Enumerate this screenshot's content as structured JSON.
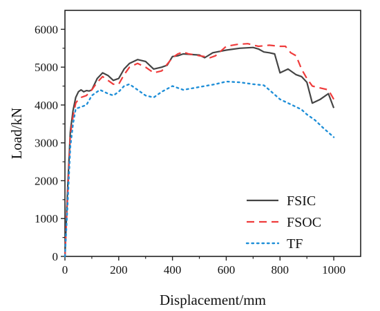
{
  "chart_data": {
    "type": "line",
    "title": "",
    "xlabel": "Displacement/mm",
    "ylabel": "Load/kN",
    "xlim": [
      0,
      1100
    ],
    "ylim": [
      0,
      6500
    ],
    "xticks": [
      0,
      200,
      400,
      600,
      800,
      1000
    ],
    "yticks": [
      0,
      1000,
      2000,
      3000,
      4000,
      5000,
      6000
    ],
    "grid": false,
    "legend_position": "bottom-right",
    "series": [
      {
        "name": "FSIC",
        "color": "#444444",
        "dash": "solid",
        "x": [
          0,
          10,
          20,
          30,
          40,
          50,
          60,
          70,
          80,
          90,
          100,
          120,
          140,
          160,
          180,
          200,
          220,
          240,
          270,
          300,
          330,
          360,
          380,
          400,
          420,
          440,
          460,
          480,
          500,
          520,
          550,
          600,
          650,
          700,
          720,
          740,
          760,
          780,
          800,
          830,
          860,
          880,
          900,
          920,
          950,
          980,
          1000
        ],
        "y": [
          0,
          1800,
          3300,
          3850,
          4200,
          4350,
          4400,
          4350,
          4380,
          4370,
          4400,
          4700,
          4850,
          4780,
          4650,
          4700,
          4950,
          5100,
          5200,
          5150,
          4950,
          5000,
          5050,
          5280,
          5300,
          5350,
          5340,
          5330,
          5320,
          5250,
          5380,
          5450,
          5500,
          5520,
          5480,
          5400,
          5380,
          5350,
          4850,
          4950,
          4800,
          4750,
          4600,
          4050,
          4150,
          4300,
          3920
        ]
      },
      {
        "name": "FSOC",
        "color": "#ef3b3b",
        "dash": "dashed",
        "x": [
          0,
          10,
          20,
          30,
          40,
          50,
          60,
          80,
          100,
          120,
          140,
          160,
          180,
          200,
          220,
          240,
          270,
          300,
          330,
          360,
          400,
          420,
          440,
          460,
          480,
          500,
          520,
          540,
          560,
          600,
          640,
          680,
          720,
          760,
          800,
          820,
          840,
          860,
          880,
          900,
          920,
          950,
          980,
          1000
        ],
        "y": [
          0,
          1600,
          3200,
          3700,
          4050,
          4150,
          4200,
          4250,
          4400,
          4600,
          4750,
          4650,
          4550,
          4550,
          4800,
          5000,
          5100,
          5000,
          4850,
          4900,
          5250,
          5350,
          5400,
          5350,
          5330,
          5300,
          5280,
          5250,
          5300,
          5550,
          5600,
          5620,
          5550,
          5580,
          5550,
          5550,
          5380,
          5300,
          4950,
          4700,
          4500,
          4450,
          4400,
          4150
        ]
      },
      {
        "name": "TF",
        "color": "#1f8fd8",
        "dash": "dotted",
        "x": [
          0,
          10,
          20,
          30,
          40,
          60,
          80,
          100,
          130,
          160,
          180,
          200,
          220,
          240,
          270,
          300,
          330,
          360,
          400,
          440,
          480,
          520,
          560,
          600,
          650,
          700,
          740,
          760,
          800,
          830,
          860,
          880,
          900,
          930,
          960,
          1000
        ],
        "y": [
          0,
          1400,
          2900,
          3500,
          3900,
          3950,
          4000,
          4250,
          4400,
          4300,
          4250,
          4350,
          4500,
          4550,
          4400,
          4250,
          4200,
          4350,
          4500,
          4400,
          4450,
          4500,
          4550,
          4620,
          4600,
          4550,
          4520,
          4400,
          4150,
          4050,
          3950,
          3880,
          3750,
          3600,
          3400,
          3150
        ]
      }
    ]
  }
}
